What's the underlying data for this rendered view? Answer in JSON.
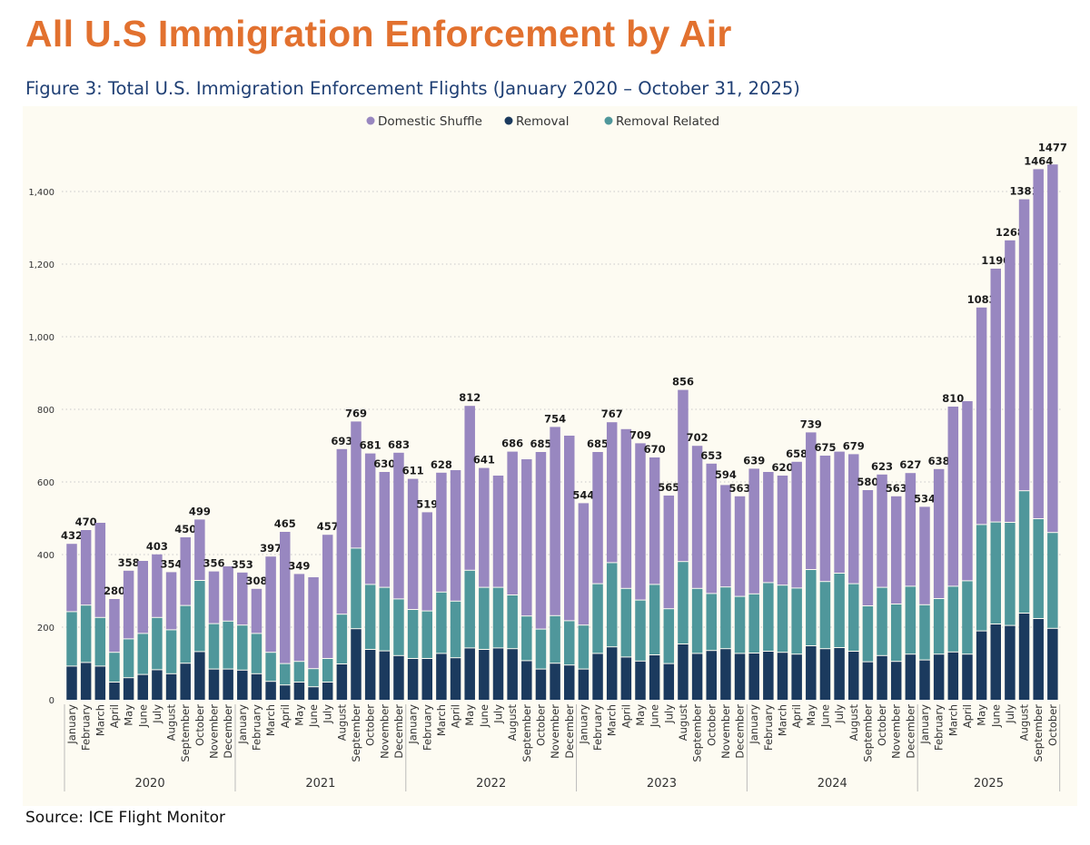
{
  "header": {
    "title": "All U.S Immigration Enforcement by Air",
    "caption": "Figure 3: Total U.S. Immigration Enforcement Flights (January 2020 – October 31, 2025)"
  },
  "footer": {
    "source": "Source: ICE Flight Monitor"
  },
  "chart_data": {
    "type": "bar",
    "stacked": true,
    "title": "",
    "xlabel": "",
    "ylabel": "",
    "ylim": [
      0,
      1500
    ],
    "yticks": [
      0,
      200,
      400,
      600,
      800,
      1000,
      1200,
      1400
    ],
    "ytick_labels": [
      "0",
      "200",
      "400",
      "600",
      "800",
      "1,000",
      "1,200",
      "1,400"
    ],
    "grid": "horizontal dotted",
    "legend_position": "top-center",
    "months": [
      "January",
      "February",
      "March",
      "April",
      "May",
      "June",
      "July",
      "August",
      "September",
      "October",
      "November",
      "December"
    ],
    "years": [
      {
        "year": "2020",
        "months": 12
      },
      {
        "year": "2021",
        "months": 12
      },
      {
        "year": "2022",
        "months": 12
      },
      {
        "year": "2023",
        "months": 12
      },
      {
        "year": "2024",
        "months": 12
      },
      {
        "year": "2025",
        "months": 10
      }
    ],
    "series": [
      {
        "name": "Removal",
        "color": "#1B3A5E",
        "values": [
          94,
          104,
          94,
          50,
          62,
          71,
          84,
          73,
          102,
          134,
          86,
          86,
          83,
          73,
          52,
          42,
          50,
          37,
          50,
          100,
          197,
          140,
          136,
          123,
          115,
          115,
          129,
          117,
          144,
          140,
          144,
          142,
          109,
          86,
          102,
          97,
          86,
          129,
          147,
          119,
          108,
          125,
          101,
          155,
          129,
          137,
          142,
          129,
          130,
          135,
          132,
          127,
          150,
          142,
          145,
          135,
          106,
          123,
          107,
          127,
          111,
          127,
          133,
          127,
          191,
          210,
          206,
          240,
          225,
          198
        ]
      },
      {
        "name": "Removal Related",
        "color": "#4F979B",
        "values": [
          150,
          158,
          134,
          82,
          107,
          113,
          144,
          121,
          159,
          196,
          125,
          132,
          124,
          111,
          80,
          59,
          57,
          50,
          65,
          137,
          222,
          179,
          175,
          156,
          135,
          131,
          169,
          156,
          214,
          171,
          167,
          148,
          123,
          110,
          131,
          122,
          121,
          192,
          232,
          189,
          168,
          194,
          151,
          227,
          179,
          157,
          170,
          157,
          163,
          189,
          185,
          182,
          210,
          185,
          205,
          186,
          154,
          188,
          158,
          187,
          152,
          153,
          181,
          202,
          293,
          281,
          284,
          337,
          275,
          264
        ]
      },
      {
        "name": "Domestic Shuffle",
        "color": "#9887C0",
        "values": [
          188,
          208,
          262,
          148,
          189,
          201,
          175,
          160,
          189,
          169,
          145,
          152,
          146,
          124,
          265,
          364,
          242,
          253,
          342,
          456,
          350,
          362,
          319,
          404,
          361,
          273,
          330,
          362,
          454,
          330,
          309,
          396,
          433,
          489,
          521,
          511,
          337,
          364,
          388,
          440,
          433,
          351,
          313,
          474,
          394,
          359,
          282,
          277,
          346,
          306,
          303,
          349,
          379,
          348,
          336,
          358,
          320,
          312,
          298,
          313,
          271,
          358,
          496,
          496,
          599,
          699,
          778,
          804,
          964,
          1015
        ]
      }
    ],
    "total_labels": [
      "432",
      "470",
      null,
      "280",
      "358",
      null,
      "403",
      "354",
      "450",
      "499",
      "356",
      null,
      "353",
      "308",
      "397",
      "465",
      "349",
      null,
      "457",
      "693",
      "769",
      "681",
      "630",
      "683",
      "611",
      "519",
      "628",
      null,
      "812",
      "641",
      null,
      "686",
      null,
      "685",
      "754",
      null,
      "544",
      "685",
      "767",
      null,
      "709",
      "670",
      "565",
      "856",
      "702",
      "653",
      "594",
      "563",
      "639",
      null,
      "620",
      "658",
      "739",
      "675",
      null,
      "679",
      "580",
      "623",
      "563",
      "627",
      "534",
      "638",
      "810",
      null,
      "1083",
      "1190",
      "1268",
      "1381",
      "1464",
      "1477"
    ],
    "legend": [
      "Domestic Shuffle",
      "Removal",
      "Removal Related"
    ]
  }
}
